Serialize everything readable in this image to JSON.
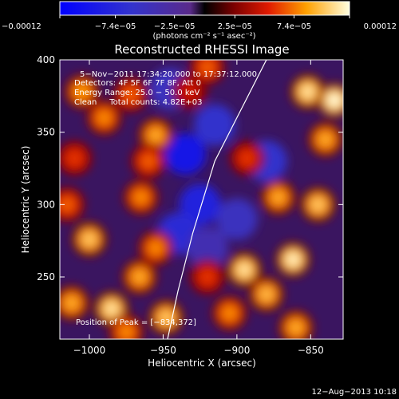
{
  "chart_data": {
    "type": "heatmap",
    "title": "Reconstructed RHESSI Image",
    "xlabel": "Heliocentric X (arcsec)",
    "ylabel": "Heliocentric Y (arcsec)",
    "xlim": [
      -1020,
      -828
    ],
    "ylim": [
      207,
      400
    ],
    "x_ticks": [
      -1000,
      -950,
      -900,
      -850
    ],
    "x_tick_labels": [
      "−1000",
      "−950",
      "−900",
      "−850"
    ],
    "y_ticks": [
      250,
      300,
      350,
      400
    ],
    "y_tick_labels": [
      "250",
      "300",
      "350",
      "400"
    ],
    "colorbar": {
      "range": [
        -0.00012,
        0.00012
      ],
      "ticks": [
        -0.00012,
        -7.4e-05,
        -2.5e-05,
        2.5e-05,
        7.4e-05,
        0.00012
      ],
      "tick_labels": [
        "−0.00012",
        "−7.4e−05",
        "−2.5e−05",
        "2.5e−05",
        "7.4e−05",
        "0.00012"
      ],
      "unit_label": "(photons cm⁻² s⁻¹ asec⁻²)"
    },
    "annotations": {
      "time": "5−Nov−2011 17:34:20.000 to 17:37:12.000",
      "detectors": "Detectors: 4F 5F 6F 7F 8F, Att 0",
      "energy": "Energy Range: 25.0 − 50.0 keV",
      "clean": "Clean     Total counts: 4.82E+03",
      "peak": "Position of Peak = [−834,372]"
    },
    "limb_curve": {
      "x": [
        -947,
        -940,
        -930,
        -915,
        -900,
        -880
      ],
      "y": [
        207,
        240,
        280,
        330,
        360,
        400
      ]
    },
    "blobs": [
      {
        "x": -1005,
        "y": 378,
        "v": 8.5e-05
      },
      {
        "x": -990,
        "y": 360,
        "v": 8e-05
      },
      {
        "x": -972,
        "y": 376,
        "v": 7e-05
      },
      {
        "x": -1010,
        "y": 332,
        "v": 6e-05
      },
      {
        "x": -955,
        "y": 348,
        "v": 9e-05
      },
      {
        "x": -960,
        "y": 330,
        "v": 7e-05
      },
      {
        "x": -965,
        "y": 305,
        "v": 8e-05
      },
      {
        "x": -1000,
        "y": 276,
        "v": 0.0001
      },
      {
        "x": -1012,
        "y": 232,
        "v": 9e-05
      },
      {
        "x": -985,
        "y": 228,
        "v": 0.00011
      },
      {
        "x": -966,
        "y": 250,
        "v": 9e-05
      },
      {
        "x": -955,
        "y": 270,
        "v": 8e-05
      },
      {
        "x": -948,
        "y": 222,
        "v": 0.0001
      },
      {
        "x": -920,
        "y": 395,
        "v": 7e-05
      },
      {
        "x": -893,
        "y": 332,
        "v": 6e-05
      },
      {
        "x": -895,
        "y": 255,
        "v": 0.00011
      },
      {
        "x": -880,
        "y": 238,
        "v": 9.5e-05
      },
      {
        "x": -862,
        "y": 262,
        "v": 0.000115
      },
      {
        "x": -872,
        "y": 305,
        "v": 9e-05
      },
      {
        "x": -845,
        "y": 300,
        "v": 0.0001
      },
      {
        "x": -840,
        "y": 345,
        "v": 9e-05
      },
      {
        "x": -852,
        "y": 378,
        "v": 0.00011
      },
      {
        "x": -834,
        "y": 372,
        "v": 0.00012
      },
      {
        "x": -860,
        "y": 215,
        "v": 9e-05
      },
      {
        "x": -905,
        "y": 225,
        "v": 8e-05
      },
      {
        "x": -920,
        "y": 250,
        "v": 6e-05
      },
      {
        "x": -975,
        "y": 212,
        "v": 8e-05
      },
      {
        "x": -1015,
        "y": 300,
        "v": 7e-05
      },
      {
        "x": -932,
        "y": 378,
        "v": 5e-05
      }
    ],
    "negatives": [
      {
        "x": -935,
        "y": 335,
        "v": -9e-05
      },
      {
        "x": -925,
        "y": 300,
        "v": -8e-05
      },
      {
        "x": -940,
        "y": 280,
        "v": -7e-05
      },
      {
        "x": -915,
        "y": 355,
        "v": -6e-05
      },
      {
        "x": -900,
        "y": 290,
        "v": -5e-05
      },
      {
        "x": -880,
        "y": 330,
        "v": -6e-05
      },
      {
        "x": -945,
        "y": 380,
        "v": -5e-05
      },
      {
        "x": -920,
        "y": 270,
        "v": -4e-05
      }
    ]
  },
  "footer": {
    "date": "12−Aug−2013 10:18"
  }
}
